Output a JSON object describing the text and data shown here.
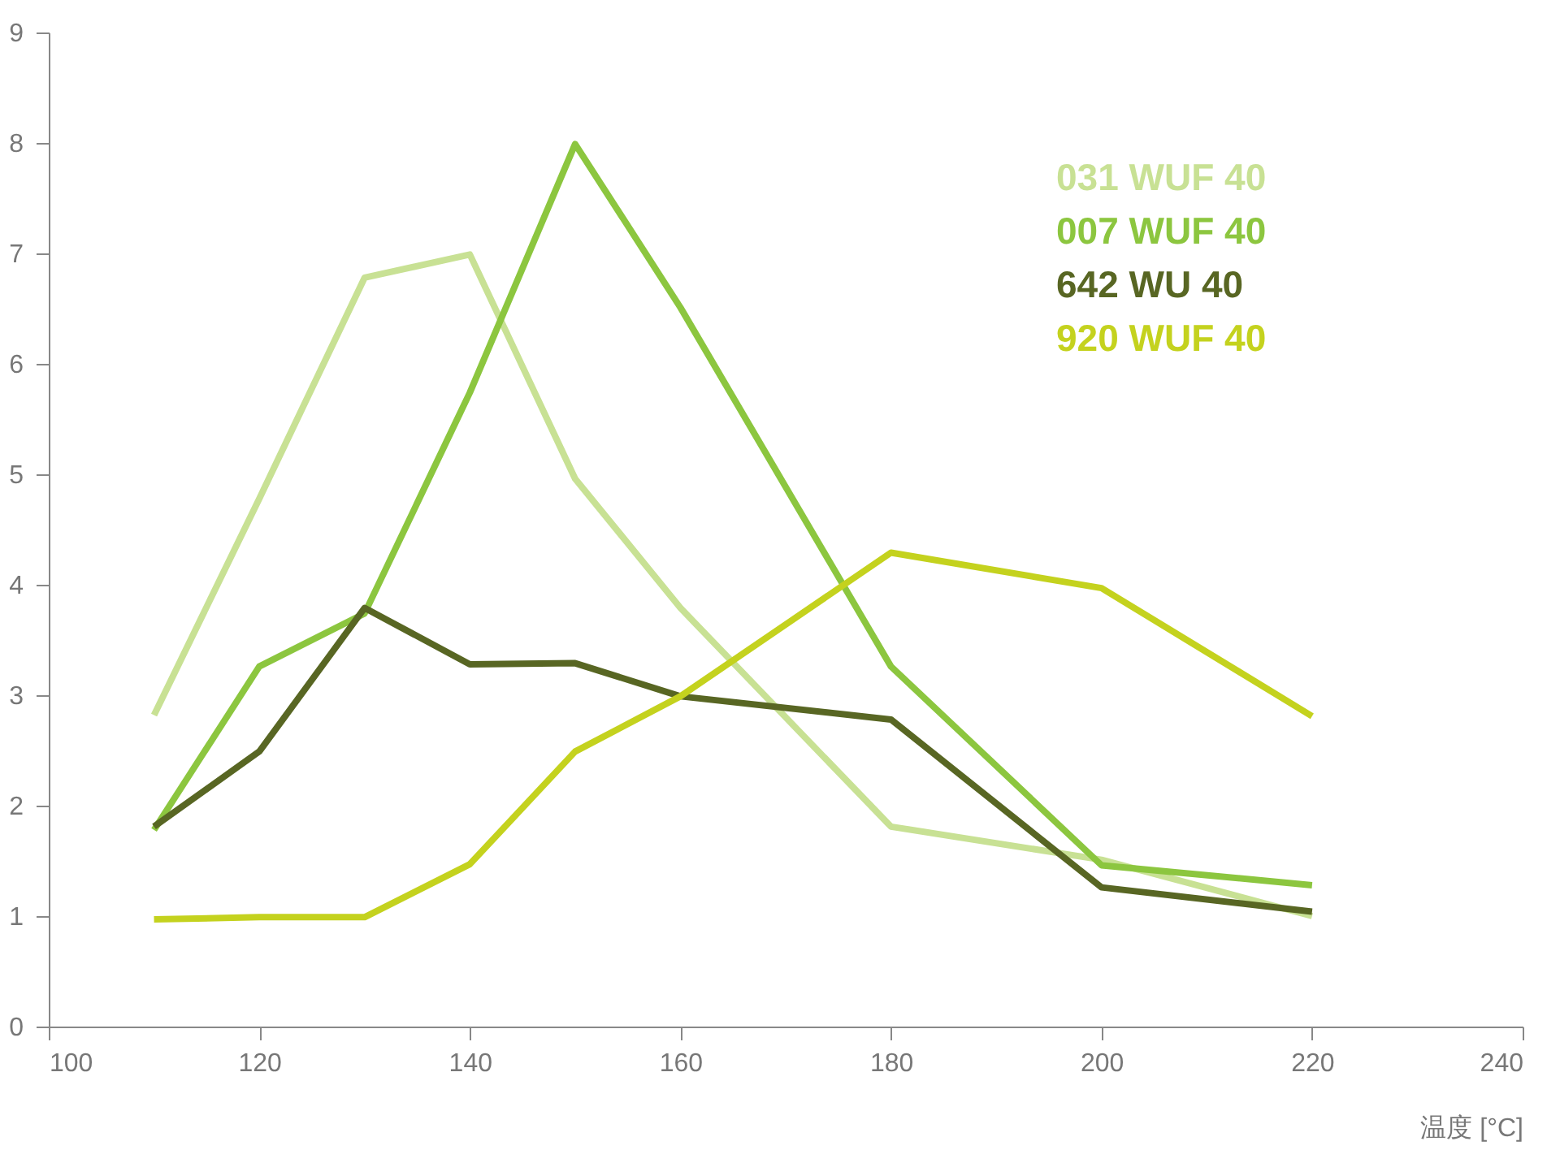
{
  "chart_data": {
    "type": "line",
    "xlabel": "温度 [°C]",
    "x": [
      110,
      120,
      130,
      140,
      150,
      160,
      180,
      200,
      220
    ],
    "series": [
      {
        "name": "031 WUF 40",
        "color": "#c8e194",
        "values": [
          2.82,
          4.78,
          6.78,
          6.99,
          4.96,
          3.79,
          1.81,
          1.51,
          1.0
        ]
      },
      {
        "name": "007 WUF 40",
        "color": "#8cc63f",
        "values": [
          1.78,
          3.26,
          3.74,
          5.74,
          7.99,
          6.51,
          3.26,
          1.46,
          1.28
        ]
      },
      {
        "name": "642 WU 40",
        "color": "#586623",
        "values": [
          1.81,
          2.49,
          3.79,
          3.28,
          3.29,
          2.99,
          2.78,
          1.26,
          1.04
        ]
      },
      {
        "name": "920 WUF 40",
        "color": "#c4d21e",
        "values": [
          0.97,
          0.99,
          0.99,
          1.47,
          2.49,
          2.99,
          4.29,
          3.97,
          2.81
        ]
      }
    ],
    "xlim": [
      100,
      240
    ],
    "xticks": [
      100,
      120,
      140,
      160,
      180,
      200,
      220,
      240
    ],
    "ylim": [
      0,
      9
    ],
    "yticks": [
      0,
      1,
      2,
      3,
      4,
      5,
      6,
      7,
      8,
      9
    ],
    "grid": false,
    "legend": "top right",
    "marker": "none",
    "line_style": "solid"
  }
}
